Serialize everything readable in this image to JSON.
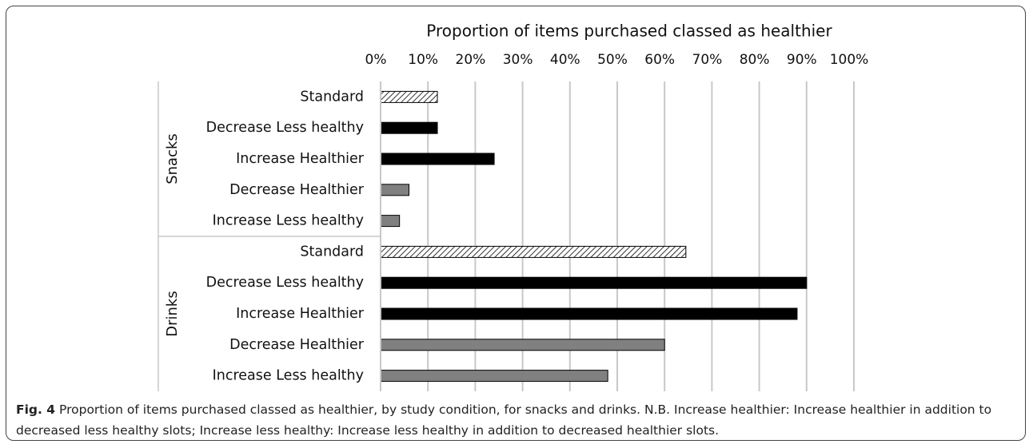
{
  "chart_data": {
    "type": "bar",
    "orientation": "horizontal",
    "title": "Proportion of items purchased classed as healthier",
    "groups": [
      {
        "name": "Snacks",
        "categories": [
          "Standard",
          "Decrease Less healthy",
          "Increase Healthier",
          "Decrease Healthier",
          "Increase Less healthy"
        ],
        "values": [
          12,
          12,
          24,
          6,
          4
        ]
      },
      {
        "name": "Drinks",
        "categories": [
          "Standard",
          "Decrease Less healthy",
          "Increase Healthier",
          "Decrease Healthier",
          "Increase Less healthy"
        ],
        "values": [
          64.5,
          90,
          88,
          60,
          48
        ]
      }
    ],
    "colors": [
      "hatched",
      "#000000",
      "#000000",
      "#808080",
      "#808080"
    ],
    "xlim": [
      0,
      100
    ],
    "xticks": [
      {
        "value": 0,
        "label": "0%"
      },
      {
        "value": 10,
        "label": "10%"
      },
      {
        "value": 20,
        "label": "20%"
      },
      {
        "value": 30,
        "label": "30%"
      },
      {
        "value": 40,
        "label": "40%"
      },
      {
        "value": 50,
        "label": "50%"
      },
      {
        "value": 60,
        "label": "60%"
      },
      {
        "value": 70,
        "label": "70%"
      },
      {
        "value": 80,
        "label": "80%"
      },
      {
        "value": 90,
        "label": "90%"
      },
      {
        "value": 100,
        "label": "100%"
      }
    ],
    "grid": true
  },
  "caption": {
    "label": "Fig. 4",
    "text": "Proportion of items purchased classed as healthier, by study condition, for snacks and drinks. N.B. Increase healthier: Increase healthier in addition to decreased less healthy slots; Increase less healthy: Increase less healthy in addition to decreased healthier slots."
  }
}
